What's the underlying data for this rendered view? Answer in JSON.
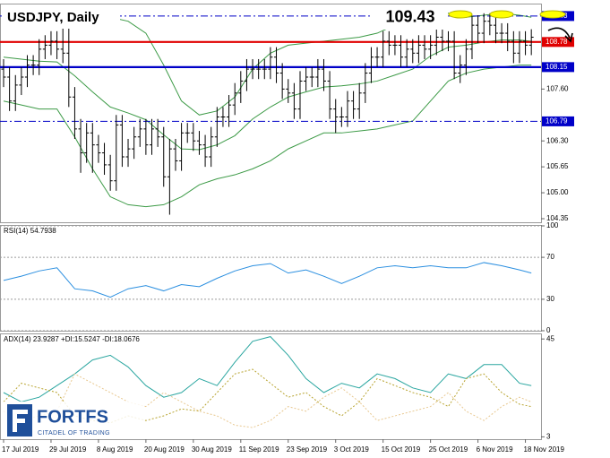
{
  "chart_data": [
    {
      "type": "ohlc",
      "title": "USDJPY, Daily",
      "annotation": "109.43",
      "categories": [
        "17 Jul 2019",
        null,
        null,
        null,
        null,
        null,
        null,
        null,
        "29 Jul 2019",
        null,
        null,
        null,
        null,
        null,
        null,
        null,
        "8 Aug 2019",
        null,
        null,
        null,
        null,
        null,
        null,
        null,
        "20 Aug 2019",
        null,
        null,
        null,
        null,
        null,
        null,
        null,
        "30 Aug 2019",
        null,
        null,
        null,
        null,
        null,
        null,
        null,
        "11 Sep 2019",
        null,
        null,
        null,
        null,
        null,
        null,
        null,
        "23 Sep 2019",
        null,
        null,
        null,
        null,
        null,
        null,
        null,
        "3 Oct 2019",
        null,
        null,
        null,
        null,
        null,
        null,
        null,
        "15 Oct 2019",
        null,
        null,
        null,
        null,
        null,
        null,
        null,
        "25 Oct 2019",
        null,
        null,
        null,
        null,
        null,
        null,
        null,
        "6 Nov 2019",
        null,
        null,
        null,
        null,
        null,
        null,
        null,
        "18 Nov 2019",
        null
      ],
      "open": [
        108.1,
        107.9,
        107.3,
        107.7,
        107.9,
        108.2,
        108.2,
        108.6,
        108.7,
        108.8,
        108.6,
        108.5,
        107.4,
        106.6,
        106.0,
        106.5,
        106.2,
        106.0,
        105.7,
        105.3,
        106.7,
        105.9,
        106.1,
        106.4,
        106.6,
        106.2,
        106.6,
        106.4,
        105.4,
        106.1,
        105.8,
        106.5,
        106.5,
        106.3,
        106.2,
        105.9,
        106.4,
        106.9,
        106.9,
        107.2,
        107.5,
        107.8,
        108.1,
        108.1,
        108.1,
        108.1,
        108.4,
        108.0,
        107.6,
        107.5,
        107.1,
        107.8,
        107.9,
        107.9,
        108.1,
        107.8,
        107.1,
        106.9,
        106.9,
        107.3,
        107.1,
        107.5,
        108.0,
        108.4,
        108.4,
        108.8,
        108.7,
        108.7,
        108.4,
        108.6,
        108.5,
        108.7,
        108.6,
        108.7,
        108.9,
        108.8,
        108.8,
        108.0,
        108.2,
        108.6,
        109.2,
        109.0,
        109.3,
        109.2,
        109.0,
        109.0,
        108.8,
        108.5,
        108.8,
        108.7
      ],
      "high": [
        108.35,
        108.15,
        107.95,
        108.15,
        108.45,
        108.45,
        108.85,
        108.95,
        109.05,
        109.05,
        109.3,
        109.3,
        107.65,
        106.85,
        106.75,
        106.75,
        106.45,
        106.25,
        105.95,
        106.95,
        106.95,
        106.35,
        106.65,
        106.85,
        106.85,
        106.85,
        106.85,
        106.65,
        106.35,
        106.35,
        106.75,
        106.75,
        106.75,
        106.55,
        106.45,
        106.65,
        107.15,
        107.15,
        107.45,
        107.75,
        108.05,
        108.35,
        108.35,
        108.35,
        108.35,
        108.65,
        108.65,
        108.25,
        107.85,
        107.75,
        108.05,
        108.15,
        108.15,
        108.35,
        108.35,
        108.05,
        107.35,
        107.15,
        107.55,
        107.55,
        107.75,
        108.25,
        108.65,
        108.65,
        109.05,
        109.05,
        108.95,
        108.95,
        108.85,
        108.85,
        108.95,
        108.95,
        108.95,
        109.15,
        109.15,
        109.05,
        109.05,
        108.45,
        108.85,
        109.45,
        109.45,
        109.5,
        109.5,
        109.45,
        109.25,
        109.25,
        109.05,
        109.05,
        109.05,
        109.1
      ],
      "low": [
        107.65,
        107.05,
        107.05,
        107.45,
        107.65,
        107.95,
        107.95,
        108.35,
        108.45,
        108.35,
        108.25,
        107.15,
        106.35,
        105.5,
        105.75,
        105.5,
        105.75,
        105.45,
        105.05,
        105.05,
        105.65,
        105.65,
        105.85,
        106.15,
        105.95,
        105.95,
        106.15,
        105.15,
        104.45,
        105.55,
        105.55,
        106.25,
        106.05,
        105.95,
        105.65,
        105.65,
        106.15,
        106.65,
        106.65,
        106.95,
        107.25,
        107.55,
        107.85,
        107.85,
        107.85,
        107.85,
        107.75,
        107.35,
        107.25,
        106.85,
        106.85,
        107.55,
        107.65,
        107.65,
        107.55,
        106.85,
        106.5,
        106.65,
        106.65,
        106.85,
        106.85,
        107.25,
        107.75,
        108.15,
        108.15,
        108.45,
        108.45,
        108.15,
        108.15,
        108.25,
        108.25,
        108.35,
        108.35,
        108.45,
        108.55,
        108.55,
        107.85,
        107.75,
        107.95,
        108.35,
        108.75,
        108.75,
        108.95,
        108.75,
        108.75,
        108.55,
        108.25,
        108.25,
        108.45,
        108.45
      ],
      "close": [
        107.9,
        107.3,
        107.7,
        107.9,
        108.2,
        108.2,
        108.6,
        108.7,
        108.8,
        108.6,
        108.5,
        107.4,
        106.6,
        106.0,
        106.5,
        106.2,
        106.0,
        105.7,
        105.3,
        106.7,
        105.9,
        106.1,
        106.4,
        106.6,
        106.2,
        106.6,
        106.4,
        105.4,
        106.1,
        105.8,
        106.5,
        106.5,
        106.3,
        106.2,
        105.9,
        106.4,
        106.9,
        106.9,
        107.2,
        107.5,
        107.8,
        108.1,
        108.1,
        108.1,
        108.1,
        108.4,
        108.0,
        107.6,
        107.5,
        107.1,
        107.8,
        107.9,
        107.9,
        108.1,
        107.8,
        107.1,
        106.9,
        106.9,
        107.3,
        107.1,
        107.5,
        108.0,
        108.4,
        108.4,
        108.8,
        108.7,
        108.7,
        108.4,
        108.6,
        108.5,
        108.7,
        108.6,
        108.7,
        108.9,
        108.8,
        108.8,
        108.0,
        108.2,
        108.6,
        109.2,
        109.0,
        109.3,
        109.2,
        109.0,
        109.0,
        108.8,
        108.5,
        108.8,
        108.7,
        108.9
      ],
      "bar_color": "#000000",
      "x": [
        0,
        3,
        6,
        9,
        12,
        15,
        18,
        21,
        24,
        27,
        30,
        33,
        36,
        39,
        42,
        45,
        48,
        51,
        54,
        57,
        60,
        63,
        66,
        69,
        72,
        75,
        78,
        81,
        84,
        87,
        89
      ],
      "series": [
        {
          "color": "#3c9a46",
          "values": [
            109.5,
            109.5,
            109.5,
            109.45,
            109.45,
            109.45,
            109.4,
            109.3,
            109.0,
            108.2,
            107.3,
            106.95,
            107.05,
            107.4,
            108.1,
            108.5,
            108.7,
            108.75,
            108.8,
            108.85,
            108.9,
            109.0,
            109.2,
            109.4,
            109.55,
            109.5,
            109.4,
            109.45,
            109.5,
            109.45,
            109.4
          ]
        },
        {
          "color": "#3c9a46",
          "values": [
            108.4,
            108.35,
            108.3,
            108.28,
            107.93,
            107.53,
            107.15,
            107.0,
            106.83,
            106.45,
            106.1,
            106.08,
            106.2,
            106.43,
            106.85,
            107.15,
            107.4,
            107.53,
            107.65,
            107.68,
            107.73,
            107.8,
            107.95,
            108.1,
            108.43,
            108.65,
            108.7,
            108.78,
            108.83,
            108.83,
            108.8
          ]
        },
        {
          "color": "#3c9a46",
          "values": [
            107.3,
            107.2,
            107.1,
            107.1,
            106.4,
            105.6,
            104.9,
            104.7,
            104.65,
            104.7,
            104.9,
            105.2,
            105.35,
            105.45,
            105.6,
            105.8,
            106.1,
            106.3,
            106.5,
            106.5,
            106.55,
            106.6,
            106.7,
            106.8,
            107.3,
            107.8,
            108.0,
            108.1,
            108.15,
            108.2,
            108.2
          ]
        }
      ],
      "levels": [
        {
          "value": 109.43,
          "label": "109.43",
          "color": "#0000c8",
          "style": "dashdot"
        },
        {
          "value": 108.78,
          "label": "108.78",
          "color": "#e00000",
          "style": "solid"
        },
        {
          "value": 108.15,
          "label": "108.15",
          "color": "#0000c8",
          "style": "solid"
        },
        {
          "value": 106.79,
          "label": "106.79",
          "color": "#0000c8",
          "style": "dashdot"
        }
      ],
      "ylim": [
        104.26,
        109.72
      ],
      "yticks": [
        {
          "value": 107.6,
          "label": "107.60"
        },
        {
          "value": 106.3,
          "label": "106.30"
        },
        105.65,
        {
          "value": 105,
          "label": "105.00"
        },
        104.35
      ]
    },
    {
      "type": "line",
      "title": "RSI(14) 54.7938",
      "xlim": [
        0,
        89
      ],
      "x": [
        0,
        3,
        6,
        9,
        12,
        15,
        18,
        21,
        24,
        27,
        30,
        33,
        36,
        39,
        42,
        45,
        48,
        51,
        54,
        57,
        60,
        63,
        66,
        69,
        72,
        75,
        78,
        81,
        84,
        87,
        89
      ],
      "series": [
        {
          "color": "#2b8fe0",
          "style": "solid",
          "values": [
            48,
            52,
            57,
            60,
            40,
            38,
            32,
            40,
            43,
            38,
            44,
            42,
            50,
            57,
            62,
            64,
            55,
            58,
            52,
            45,
            52,
            60,
            62,
            60,
            62,
            60,
            60,
            65,
            62,
            58,
            55
          ]
        }
      ],
      "ylim": [
        0,
        100
      ],
      "yticks": [
        100,
        70,
        30,
        0
      ],
      "grid": true
    },
    {
      "type": "line",
      "title": "ADX(14) 23.9287 +DI:15.5247 -DI:18.0676",
      "xlim": [
        0,
        89
      ],
      "x": [
        0,
        3,
        6,
        9,
        12,
        15,
        18,
        21,
        24,
        27,
        30,
        33,
        36,
        39,
        42,
        45,
        48,
        51,
        54,
        57,
        60,
        63,
        66,
        69,
        72,
        75,
        78,
        81,
        84,
        87,
        89
      ],
      "series": [
        {
          "color": "#2aa6a0",
          "style": "solid",
          "values": [
            22,
            18,
            20,
            25,
            30,
            36,
            38,
            33,
            25,
            20,
            22,
            28,
            25,
            35,
            44,
            46,
            38,
            28,
            22,
            26,
            24,
            30,
            28,
            24,
            22,
            30,
            28,
            34,
            34,
            26,
            25
          ]
        },
        {
          "color": "#b8a430",
          "style": "dotted",
          "values": [
            18,
            26,
            24,
            22,
            12,
            10,
            9,
            12,
            10,
            12,
            15,
            14,
            22,
            30,
            32,
            26,
            20,
            22,
            16,
            12,
            18,
            28,
            25,
            22,
            20,
            16,
            28,
            30,
            22,
            17,
            16
          ]
        },
        {
          "color": "#e8c890",
          "style": "dotted",
          "values": [
            14,
            10,
            12,
            14,
            30,
            26,
            22,
            18,
            16,
            22,
            18,
            14,
            12,
            8,
            7,
            10,
            16,
            14,
            20,
            24,
            18,
            10,
            12,
            14,
            16,
            22,
            14,
            10,
            16,
            20,
            18
          ]
        }
      ],
      "ylim": [
        2,
        47
      ],
      "yticks": [
        45,
        3
      ]
    }
  ],
  "logo": {
    "name": "FORTFS",
    "tagline": "CITADEL OF TRADING"
  }
}
